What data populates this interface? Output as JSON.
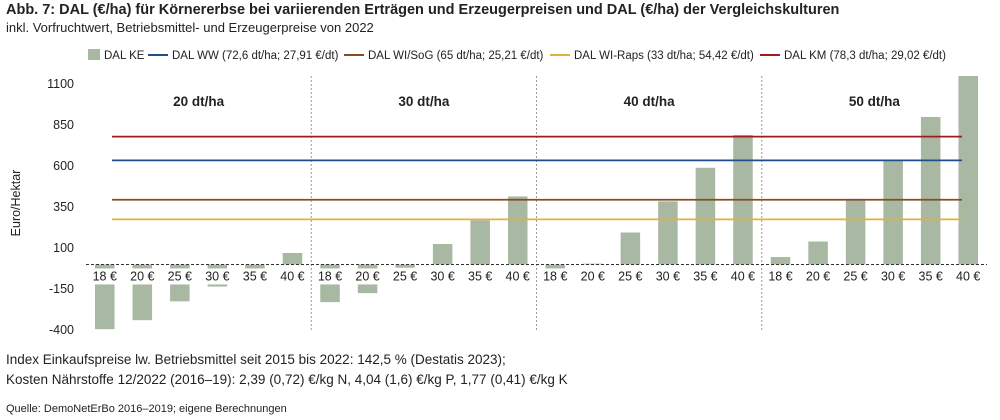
{
  "header": {
    "title": "Abb. 7: DAL (€/ha) für Körnererbse bei variierenden Erträgen und Erzeugerpreisen und DAL (€/ha) der Vergleichskulturen",
    "subtitle": "inkl. Vorfruchtwert, Betriebsmittel- und Erzeugerpreise von 2022"
  },
  "footer": {
    "note1": "Index Einkaufspreise lw. Betriebsmittel seit 2015 bis 2022: 142,5 % (Destatis 2023);",
    "note2": "Kosten Nährstoffe 12/2022 (2016–19): 2,39 (0,72) €/kg N, 4,04 (1,6) €/kg P, 1,77 (0,41) €/kg K",
    "source": "Quelle: DemoNetErBo 2016–2019; eigene Berechnungen"
  },
  "chart_data": {
    "type": "bar",
    "ylabel": "Euro/Hektar",
    "ylim": [
      -400,
      1150
    ],
    "yticks": [
      -400,
      -150,
      100,
      350,
      600,
      850,
      1100
    ],
    "grid": false,
    "legend_position": "top",
    "groups": [
      {
        "label": "20 dt/ha",
        "categories": [
          "18 €",
          "20 €",
          "25 €",
          "30 €",
          "35 €",
          "40 €"
        ],
        "values": [
          -395,
          -340,
          -225,
          -135,
          -30,
          70
        ]
      },
      {
        "label": "30 dt/ha",
        "categories": [
          "18 €",
          "20 €",
          "25 €",
          "30 €",
          "35 €",
          "40 €"
        ],
        "values": [
          -230,
          -175,
          -20,
          125,
          270,
          415
        ]
      },
      {
        "label": "40 dt/ha",
        "categories": [
          "18 €",
          "20 €",
          "25 €",
          "30 €",
          "35 €",
          "40 €"
        ],
        "values": [
          -45,
          5,
          195,
          385,
          590,
          790
        ]
      },
      {
        "label": "50 dt/ha",
        "categories": [
          "18 €",
          "20 €",
          "25 €",
          "30 €",
          "35 €",
          "40 €"
        ],
        "values": [
          45,
          140,
          400,
          640,
          900,
          1150
        ]
      }
    ],
    "bar_series": {
      "name": "DAL KE",
      "color": "#a8b8a2"
    },
    "reference_lines": [
      {
        "name": "DAL WW (72,6 dt/ha; 27,91 €/dt)",
        "value": 635,
        "color": "#1f4e8c"
      },
      {
        "name": "DAL WI/SoG (65 dt/ha; 25,21 €/dt)",
        "value": 395,
        "color": "#8b4a1f"
      },
      {
        "name": "DAL WI-Raps (33 dt/ha; 54,42 €/dt)",
        "value": 275,
        "color": "#e0b23a"
      },
      {
        "name": "DAL KM (78,3 dt/ha; 29,02 €/dt)",
        "value": 780,
        "color": "#a01c1c"
      }
    ]
  }
}
